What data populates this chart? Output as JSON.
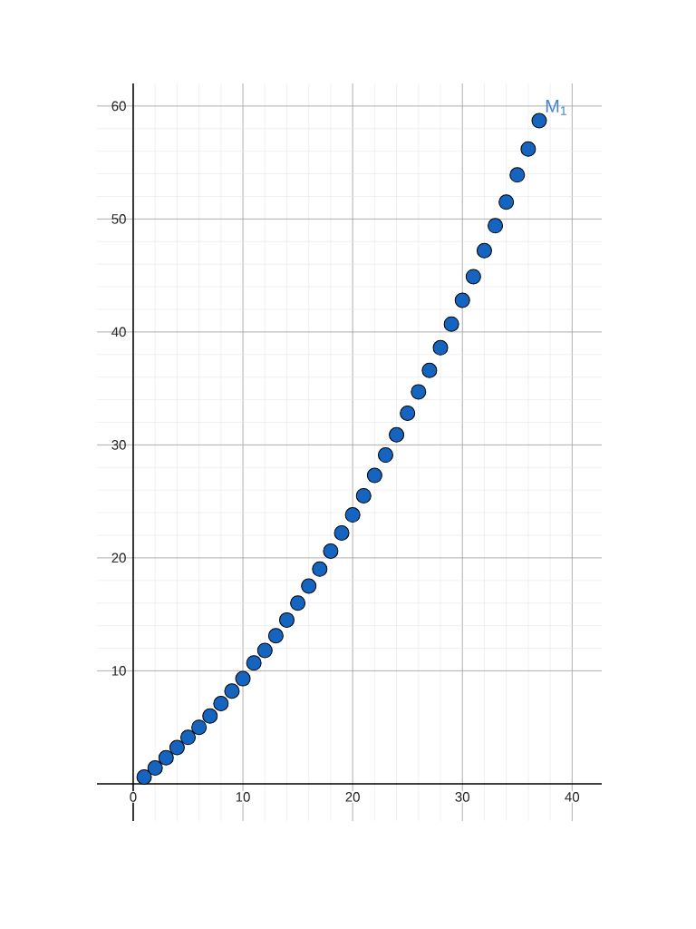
{
  "chart_data": {
    "type": "scatter",
    "x": [
      1,
      2,
      3,
      4,
      5,
      6,
      7,
      8,
      9,
      10,
      11,
      12,
      13,
      14,
      15,
      16,
      17,
      18,
      19,
      20,
      21,
      22,
      23,
      24,
      25,
      26,
      27,
      28,
      29,
      30,
      31,
      32,
      33,
      34,
      35,
      36,
      37
    ],
    "values": [
      0.6,
      1.4,
      2.3,
      3.2,
      4.1,
      5.0,
      6.0,
      7.1,
      8.2,
      9.3,
      10.7,
      11.8,
      13.1,
      14.5,
      16.0,
      17.5,
      19.0,
      20.6,
      22.2,
      23.8,
      25.5,
      27.3,
      29.1,
      30.9,
      32.8,
      34.7,
      36.6,
      38.6,
      40.7,
      42.8,
      44.9,
      47.2,
      49.4,
      51.5,
      53.9,
      56.2,
      58.7
    ],
    "color": "#1565c0",
    "marker": "circle",
    "xlim": [
      -3.3,
      42.7
    ],
    "ylim": [
      -3.3,
      62
    ],
    "xticks": [
      0,
      10,
      20,
      30,
      40
    ],
    "yticks": [
      10,
      20,
      30,
      40,
      50,
      60
    ],
    "grid": true,
    "annotations": [
      {
        "text": "M$_{1}$",
        "x": 37,
        "y": 58.7
      }
    ]
  }
}
